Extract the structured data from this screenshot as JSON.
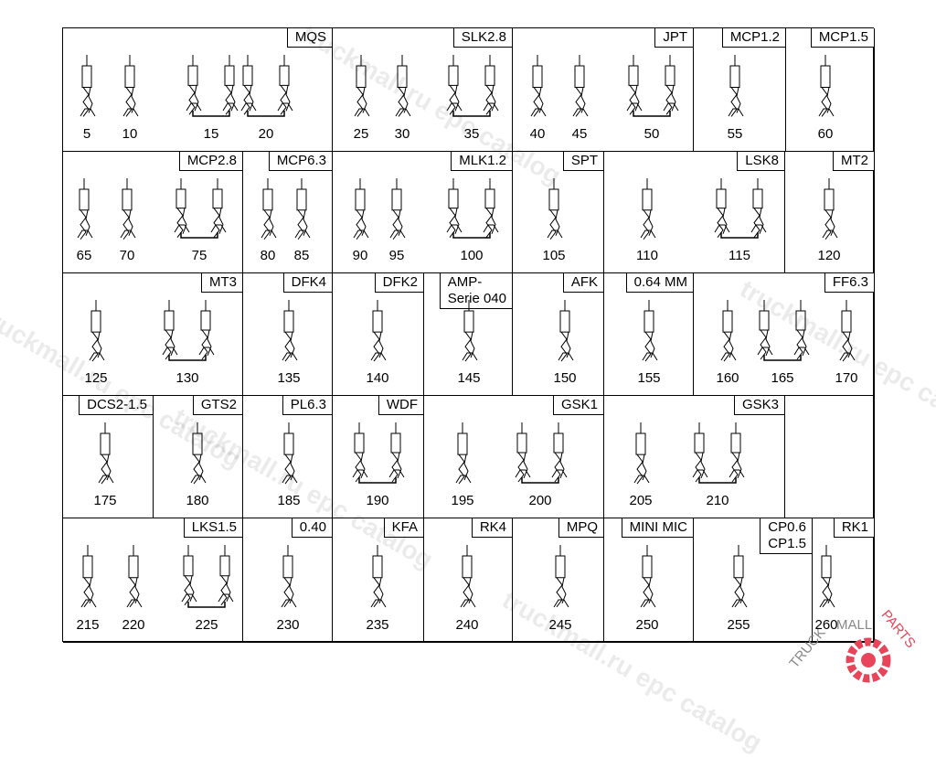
{
  "cells": [
    {
      "label": "MQS",
      "parts": [
        "5",
        "10",
        "15",
        "20"
      ]
    },
    {
      "label": "SLK2.8",
      "parts": [
        "25",
        "30",
        "35"
      ]
    },
    {
      "label": "JPT",
      "parts": [
        "40",
        "45",
        "50"
      ]
    },
    {
      "label": "MCP1.2",
      "parts": [
        "55"
      ]
    },
    {
      "label": "MCP1.5",
      "parts": [
        "60"
      ]
    },
    {
      "label": "MCP2.8",
      "parts": [
        "65",
        "70",
        "75"
      ]
    },
    {
      "label": "MCP6.3",
      "parts": [
        "80",
        "85"
      ]
    },
    {
      "label": "MLK1.2",
      "parts": [
        "90",
        "95",
        "100"
      ]
    },
    {
      "label": "SPT",
      "parts": [
        "105"
      ]
    },
    {
      "label": "LSK8",
      "parts": [
        "110",
        "115"
      ]
    },
    {
      "label": "MT2",
      "parts": [
        "120"
      ]
    },
    {
      "label": "MT3",
      "parts": [
        "125",
        "130"
      ]
    },
    {
      "label": "DFK4",
      "parts": [
        "135"
      ]
    },
    {
      "label": "DFK2",
      "parts": [
        "140"
      ]
    },
    {
      "label": "AMP-\nSerie 040",
      "parts": [
        "145"
      ]
    },
    {
      "label": "AFK",
      "parts": [
        "150"
      ]
    },
    {
      "label": "0.64 MM",
      "parts": [
        "155"
      ]
    },
    {
      "label": "FF6.3",
      "parts": [
        "160",
        "165",
        "170"
      ]
    },
    {
      "label": "DCS2-1.5",
      "parts": [
        "175"
      ]
    },
    {
      "label": "GTS2",
      "parts": [
        "180"
      ]
    },
    {
      "label": "PL6.3",
      "parts": [
        "185"
      ]
    },
    {
      "label": "WDF",
      "parts": [
        "190"
      ]
    },
    {
      "label": "GSK1",
      "parts": [
        "195",
        "200"
      ]
    },
    {
      "label": "GSK3",
      "parts": [
        "205",
        "210"
      ]
    },
    {
      "label": "",
      "parts": []
    },
    {
      "label": "LKS1.5",
      "parts": [
        "215",
        "220",
        "225"
      ]
    },
    {
      "label": "0.40",
      "parts": [
        "230"
      ]
    },
    {
      "label": "KFA",
      "parts": [
        "235"
      ]
    },
    {
      "label": "RK4",
      "parts": [
        "240"
      ]
    },
    {
      "label": "MPQ",
      "parts": [
        "245"
      ]
    },
    {
      "label": "MINI MIC",
      "parts": [
        "250"
      ]
    },
    {
      "label": "CP0.6\nCP1.5",
      "parts": [
        "255"
      ]
    },
    {
      "label": "RK1",
      "parts": [
        "260"
      ]
    }
  ],
  "watermark": "truckmall.ru epc catalog",
  "logo_text": "TRUCKMALLPARTS",
  "colors": {
    "line": "#000000",
    "watermark": "#cccccc",
    "logo": "#e8455a"
  }
}
